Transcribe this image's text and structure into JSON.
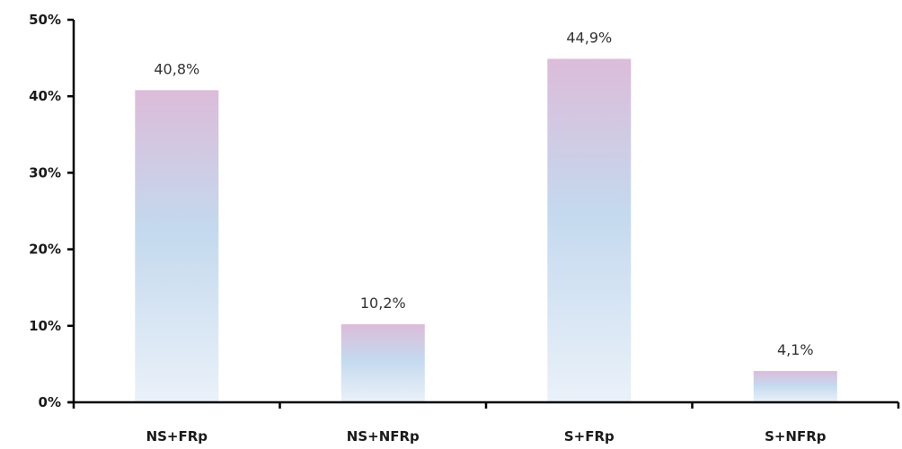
{
  "chart_data": {
    "type": "bar",
    "categories": [
      "NS+FRp",
      "NS+NFRp",
      "S+FRp",
      "S+NFRp"
    ],
    "values": [
      40.8,
      10.2,
      44.9,
      4.1
    ],
    "value_labels": [
      "40,8%",
      "10,2%",
      "44,9%",
      "4,1%"
    ],
    "title": "",
    "xlabel": "",
    "ylabel": "",
    "ylim": [
      0,
      50
    ],
    "yticks": [
      0,
      10,
      20,
      30,
      40,
      50
    ],
    "ytick_labels": [
      "0%",
      "10%",
      "20%",
      "30%",
      "40%",
      "50%"
    ],
    "grid": false,
    "legend": "none",
    "bar_colors": {
      "top": "#dcbcd9",
      "middle": "#c4d9ee",
      "bottom": "#eaf1f9"
    }
  }
}
